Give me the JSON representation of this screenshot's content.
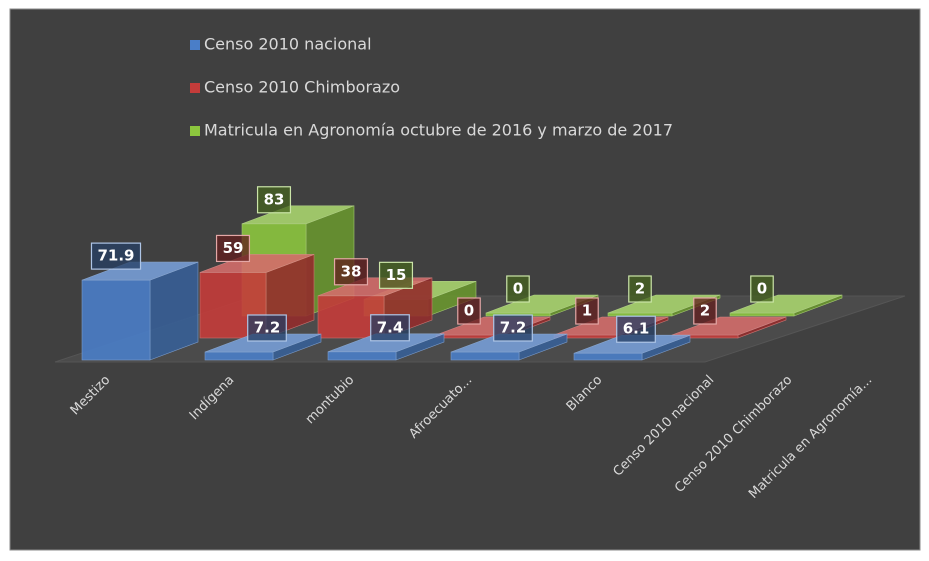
{
  "chart_data": {
    "type": "bar3d",
    "categories": [
      "Mestizo",
      "Indígena",
      "montubio",
      "Afroecuato...",
      "Blanco",
      "Censo 2010 nacional",
      "Censo 2010 Chimborazo",
      "Matricula  en Agronomía..."
    ],
    "series": [
      {
        "name": "Censo 2010 nacional",
        "color": "#4a7ec8",
        "values": [
          71.9,
          7.2,
          7.4,
          7.2,
          6.1,
          null,
          null,
          null
        ]
      },
      {
        "name": "Censo 2010 Chimborazo",
        "color": "#c43c3a",
        "values": [
          59,
          38,
          0,
          1,
          2,
          null,
          null,
          null
        ]
      },
      {
        "name": "Matricula  en Agronomía octubre de 2016 y marzo de 2017",
        "color": "#8cc63e",
        "values": [
          83,
          15,
          0,
          2,
          0,
          null,
          null,
          null
        ]
      }
    ],
    "ylim": [
      0,
      90
    ],
    "legend": "top"
  }
}
